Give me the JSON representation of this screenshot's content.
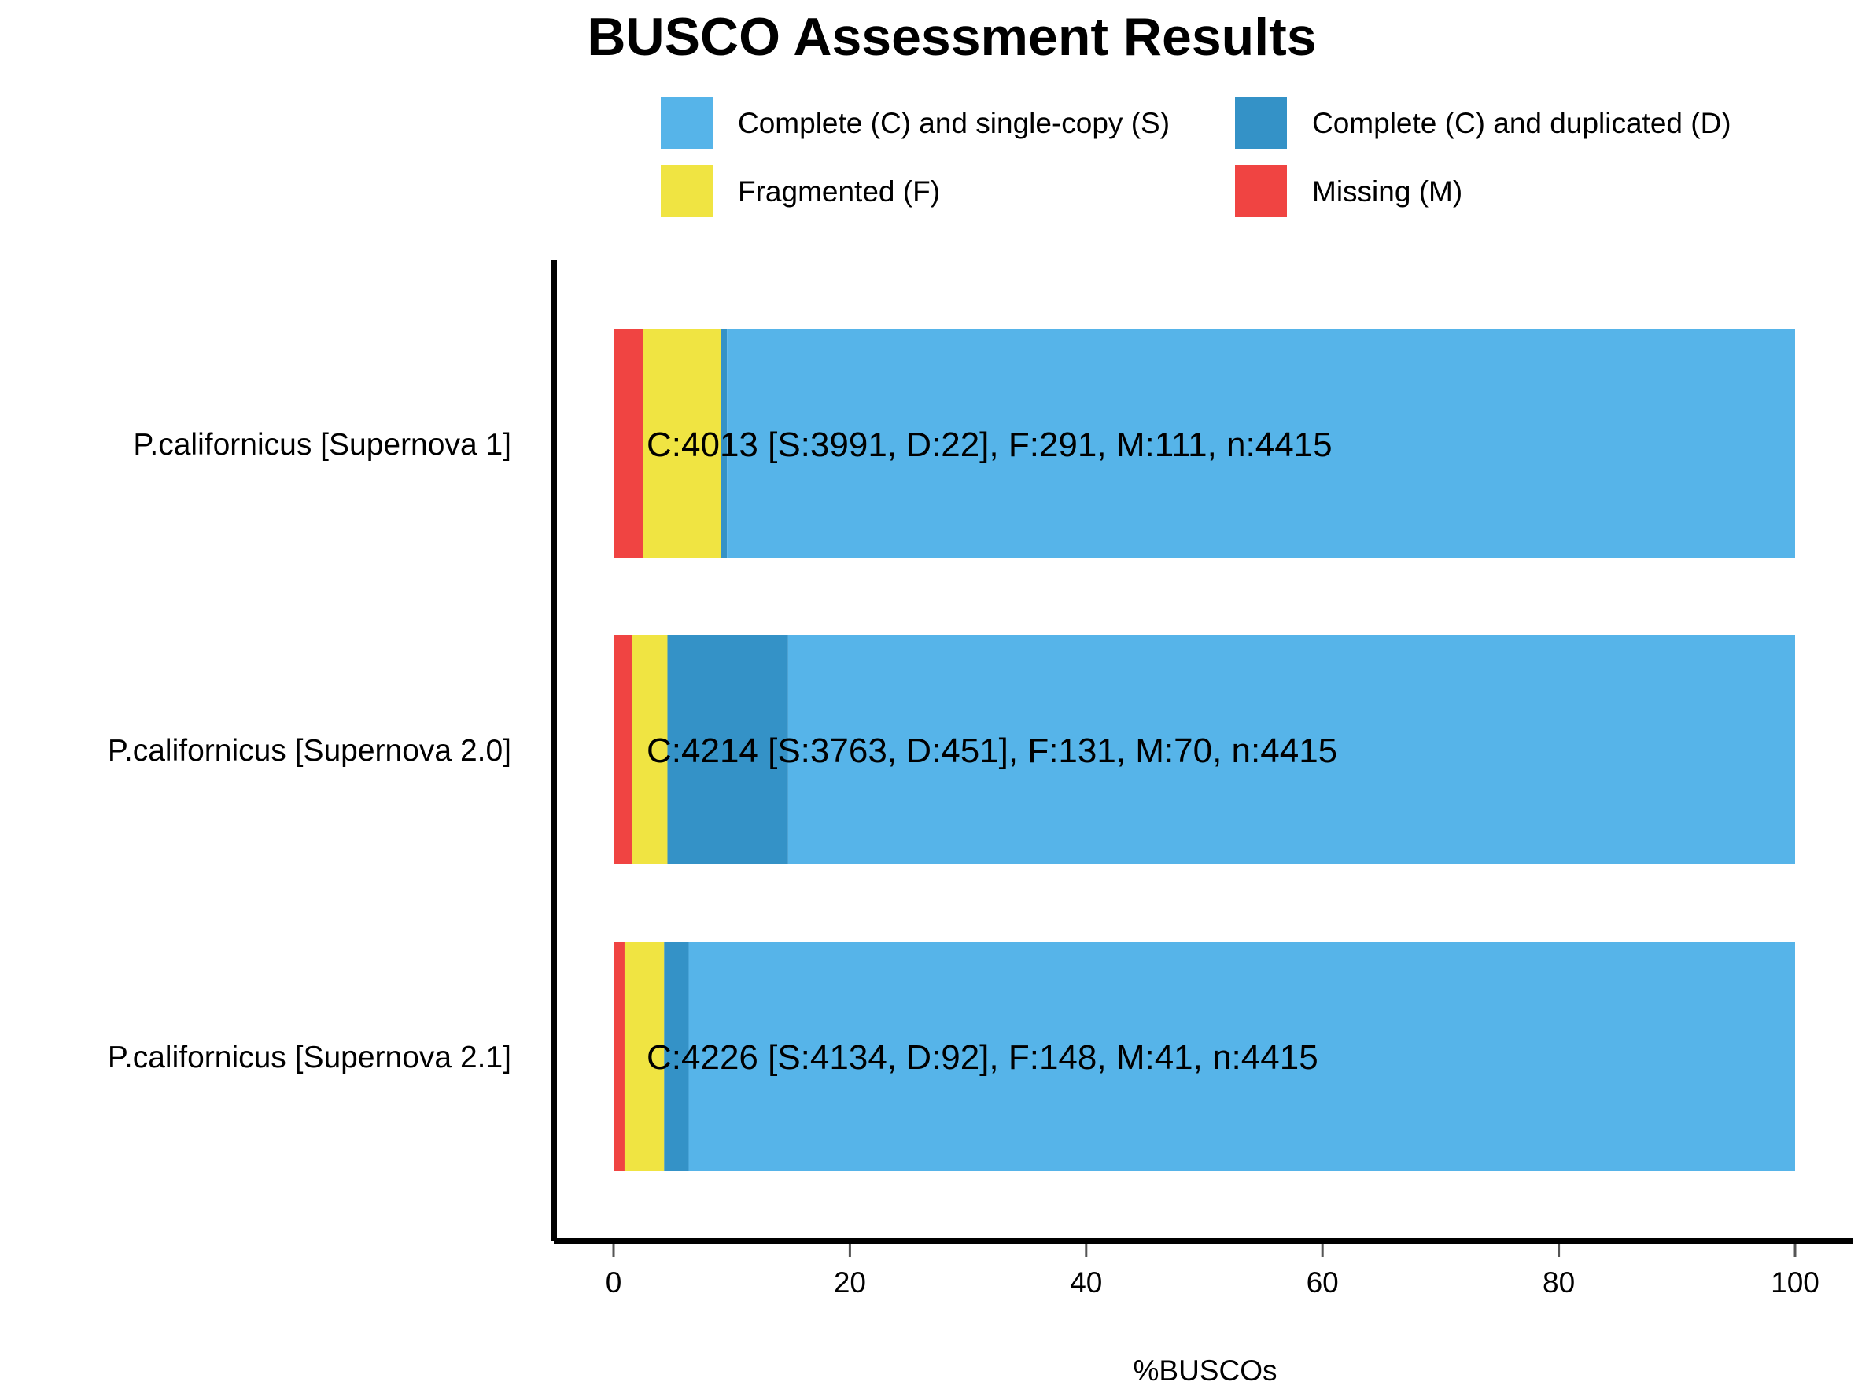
{
  "chart_data": {
    "type": "bar",
    "orientation": "horizontal",
    "stacked": true,
    "title": "BUSCO Assessment Results",
    "xlabel": "%BUSCOs",
    "ylabel": "",
    "xlim": [
      0,
      100
    ],
    "x_ticks": [
      "0",
      "20",
      "40",
      "60",
      "80",
      "100"
    ],
    "grid": false,
    "legend_position": "top",
    "categories": [
      "P.californicus [Supernova 1]",
      "P.californicus [Supernova 2.0]",
      "P.californicus [Supernova 2.1]"
    ],
    "series": [
      {
        "name": "Missing (M)",
        "color": "#f04442",
        "values": [
          2.51,
          1.59,
          0.93
        ]
      },
      {
        "name": "Fragmented (F)",
        "color": "#f0e442",
        "values": [
          6.59,
          2.97,
          3.35
        ]
      },
      {
        "name": "Complete (C) and duplicated (D)",
        "color": "#3492c7",
        "values": [
          0.5,
          10.21,
          2.08
        ]
      },
      {
        "name": "Complete (C) and single-copy (S)",
        "color": "#56b4e9",
        "values": [
          90.4,
          85.23,
          93.64
        ]
      }
    ],
    "legend_order": [
      "Complete (C) and single-copy (S)",
      "Complete (C) and duplicated (D)",
      "Fragmented (F)",
      "Missing (M)"
    ],
    "bar_labels": [
      "C:4013 [S:3991, D:22], F:291, M:111, n:4415",
      "C:4214 [S:3763, D:451], F:131, M:70, n:4415",
      "C:4226 [S:4134, D:92], F:148, M:41, n:4415"
    ]
  }
}
